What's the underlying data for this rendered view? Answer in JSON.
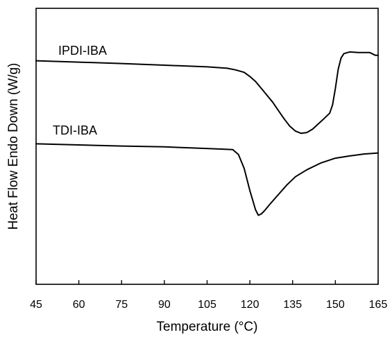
{
  "chart_data": {
    "type": "line",
    "xlabel": "Temperature (°C)",
    "ylabel": "Heat Flow Endo Down (W/g)",
    "xlim": [
      45,
      165
    ],
    "x_ticks": [
      45,
      60,
      75,
      90,
      105,
      120,
      135,
      150,
      165
    ],
    "y_ticks_labeled": false,
    "ylim": [
      0,
      100
    ],
    "grid": false,
    "legend": "none",
    "series": [
      {
        "name": "IPDI-IBA",
        "x": [
          45,
          60,
          75,
          90,
          105,
          112,
          115,
          118,
          120,
          122,
          124,
          126,
          128,
          130,
          132,
          134,
          136,
          138,
          140,
          142,
          144,
          146,
          148,
          149,
          150,
          151,
          152,
          153,
          155,
          158,
          160,
          162,
          163,
          164,
          165
        ],
        "y": [
          81.0,
          80.5,
          80.0,
          79.4,
          78.8,
          78.3,
          77.7,
          76.8,
          75.3,
          73.5,
          71.0,
          68.5,
          66.0,
          63.0,
          60.0,
          57.3,
          55.5,
          54.7,
          55.0,
          56.2,
          58.1,
          60.0,
          62.0,
          65.0,
          71.0,
          78.0,
          82.0,
          83.6,
          84.2,
          84.0,
          84.0,
          84.0,
          83.5,
          83.0,
          83.0
        ]
      },
      {
        "name": "TDI-IBA",
        "x": [
          45,
          60,
          75,
          90,
          100,
          110,
          114,
          116,
          118,
          120,
          122,
          123,
          124,
          125,
          127,
          130,
          133,
          136,
          140,
          145,
          150,
          155,
          160,
          165
        ],
        "y": [
          50.9,
          50.5,
          50.1,
          49.8,
          49.4,
          49.0,
          48.8,
          47.0,
          42.0,
          34.0,
          27.0,
          25.0,
          25.5,
          26.5,
          29.0,
          32.5,
          36.0,
          39.0,
          41.5,
          44.0,
          45.7,
          46.5,
          47.2,
          47.6
        ]
      }
    ]
  }
}
